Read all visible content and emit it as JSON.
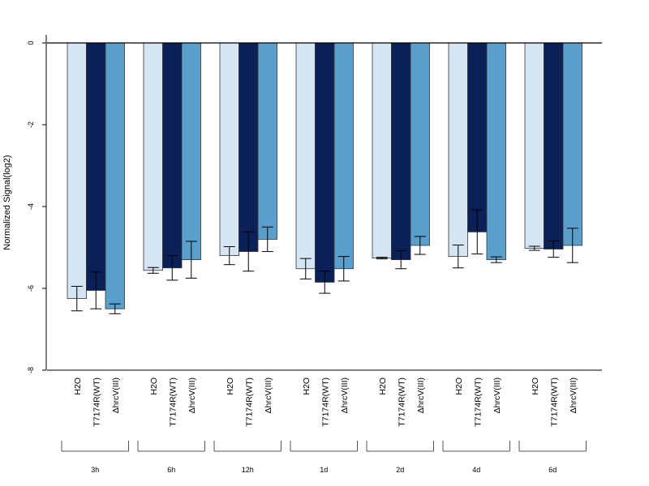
{
  "chart_data": {
    "type": "bar",
    "title": "",
    "xlabel": "",
    "ylabel": "Normalized Signal(log2)",
    "ylim": [
      -8,
      0
    ],
    "yticks": [
      0,
      -2,
      -4,
      -6,
      -8
    ],
    "ytick_labels": [
      "0",
      "-2",
      "-4",
      "-6",
      "-8"
    ],
    "grid": false,
    "bar_labels": [
      "H2O",
      "T7174R(WT)",
      "ΔhrcV(III)"
    ],
    "groups": [
      "3h",
      "6h",
      "12h",
      "1d",
      "2d",
      "4d",
      "6d"
    ],
    "series": [
      {
        "name": "H2O",
        "color": "#d6e5f4",
        "values": [
          -6.25,
          -5.56,
          -5.2,
          -5.52,
          -5.26,
          -5.22,
          -5.02
        ],
        "errors": [
          0.3,
          0.07,
          0.22,
          0.25,
          0.02,
          0.28,
          0.05
        ]
      },
      {
        "name": "T7174R(WT)",
        "color": "#0b2057",
        "values": [
          -6.05,
          -5.5,
          -5.1,
          -5.85,
          -5.3,
          -4.62,
          -5.04
        ],
        "errors": [
          0.45,
          0.3,
          0.48,
          0.27,
          0.22,
          0.54,
          0.2
        ]
      },
      {
        "name": "ΔhrcV(III)",
        "color": "#5a9ecc",
        "values": [
          -6.5,
          -5.3,
          -4.8,
          -5.52,
          -4.95,
          -5.3,
          -4.95
        ],
        "errors": [
          0.12,
          0.45,
          0.3,
          0.3,
          0.22,
          0.07,
          0.42
        ]
      }
    ]
  }
}
